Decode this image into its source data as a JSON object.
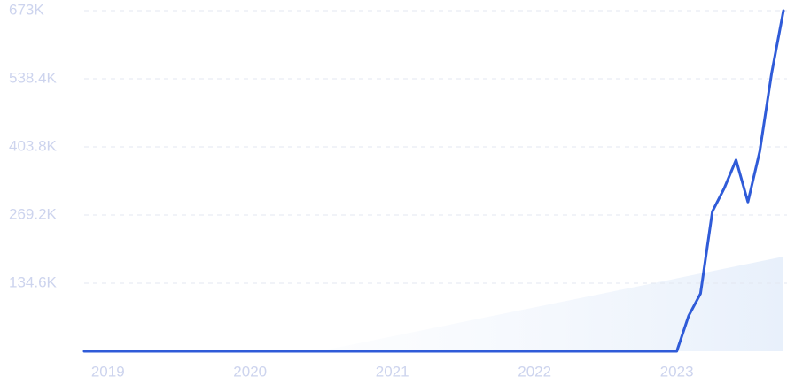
{
  "chart_data": {
    "type": "line",
    "categories": [
      null,
      null,
      "2019",
      null,
      null,
      null,
      null,
      null,
      null,
      null,
      null,
      null,
      null,
      null,
      "2020",
      null,
      null,
      null,
      null,
      null,
      null,
      null,
      null,
      null,
      null,
      null,
      "2021",
      null,
      null,
      null,
      null,
      null,
      null,
      null,
      null,
      null,
      null,
      null,
      "2022",
      null,
      null,
      null,
      null,
      null,
      null,
      null,
      null,
      null,
      null,
      null,
      "2023",
      null,
      null,
      null,
      null,
      null,
      null,
      null,
      null,
      null
    ],
    "values": [
      0,
      0,
      0,
      0,
      0,
      0,
      0,
      0,
      0,
      0,
      0,
      0,
      0,
      0,
      0,
      0,
      0,
      0,
      0,
      0,
      0,
      0,
      0,
      0,
      0,
      0,
      0,
      0,
      0,
      0,
      0,
      0,
      0,
      0,
      0,
      0,
      0,
      0,
      0,
      0,
      0,
      0,
      0,
      0,
      0,
      0,
      0,
      0,
      0,
      0,
      0,
      70000,
      114000,
      276000,
      322000,
      378000,
      295000,
      395000,
      549000,
      673000
    ],
    "color": "#2f5bd8",
    "ylim": [
      0,
      673000
    ],
    "yticks": [
      {
        "value": 134600,
        "label": "134.6K"
      },
      {
        "value": 269200,
        "label": "269.2K"
      },
      {
        "value": 403800,
        "label": "403.8K"
      },
      {
        "value": 538400,
        "label": "538.4K"
      },
      {
        "value": 673000,
        "label": "673K"
      }
    ],
    "grid": true
  }
}
